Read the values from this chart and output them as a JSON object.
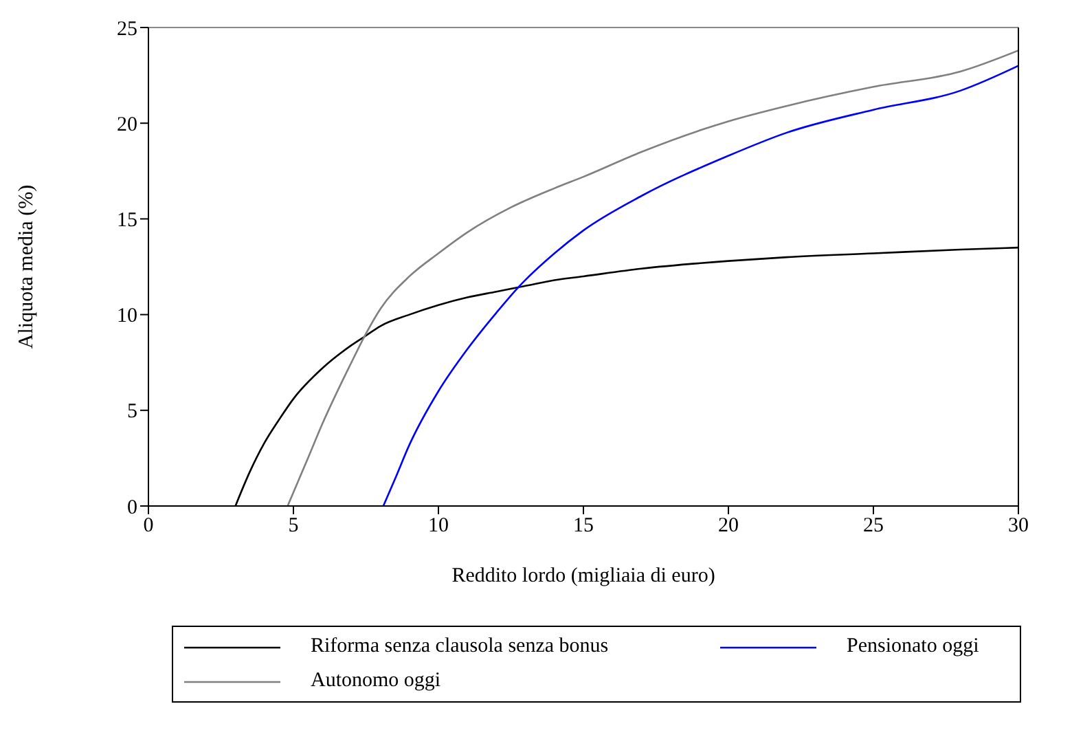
{
  "chart_data": {
    "type": "line",
    "xlabel": "Reddito lordo (migliaia di euro)",
    "ylabel": "Aliquota media (%)",
    "xlim": [
      0,
      30
    ],
    "xticks": [
      0,
      5,
      10,
      15,
      20,
      25,
      30
    ],
    "ylim": [
      0,
      25
    ],
    "yticks": [
      0,
      5,
      10,
      15,
      20,
      25
    ],
    "legend": "bottom",
    "marker": "none",
    "line_style": "solid",
    "series": [
      {
        "name": "Riforma senza clausola senza bonus",
        "color": "#000000",
        "x": [
          3,
          3.5,
          4,
          4.5,
          5,
          6,
          7,
          7.5,
          8,
          9,
          10,
          11,
          12,
          13,
          14,
          15,
          17,
          20,
          22,
          25,
          28,
          30
        ],
        "values": [
          0,
          1.8,
          3.3,
          4.5,
          5.6,
          7.2,
          8.4,
          8.9,
          9.4,
          10,
          10.5,
          10.9,
          11.2,
          11.5,
          11.8,
          12,
          12.4,
          12.8,
          13,
          13.2,
          13.4,
          13.5
        ]
      },
      {
        "name": "Pensionato oggi",
        "color": "#0000ff",
        "x": [
          8.1,
          8.5,
          9,
          10,
          11,
          12,
          12.8,
          14,
          15,
          17,
          20,
          22,
          25,
          28,
          30
        ],
        "values": [
          0,
          1.4,
          3.2,
          6,
          8.2,
          10.1,
          11.5,
          13.2,
          14.4,
          16.2,
          18.3,
          19.5,
          20.7,
          21.7,
          23
        ]
      },
      {
        "name": "Autonomo oggi",
        "color": "#808080",
        "x": [
          4.8,
          5.5,
          6,
          7,
          7.5,
          8,
          9,
          10,
          11,
          12.5,
          14,
          15,
          17,
          20,
          22,
          25,
          28,
          30
        ],
        "values": [
          0,
          2.5,
          4.3,
          7.5,
          9,
          10.3,
          12,
          13.2,
          14.3,
          15.6,
          16.6,
          17.2,
          18.5,
          20.1,
          20.9,
          21.9,
          22.7,
          23.8
        ]
      }
    ]
  }
}
